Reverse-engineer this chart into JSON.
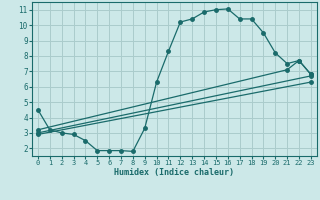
{
  "xlabel": "Humidex (Indice chaleur)",
  "bg_color": "#cce8e8",
  "grid_color": "#aacccc",
  "line_color": "#1a6b6b",
  "xlim": [
    -0.5,
    23.5
  ],
  "ylim": [
    1.5,
    11.5
  ],
  "xticks": [
    0,
    1,
    2,
    3,
    4,
    5,
    6,
    7,
    8,
    9,
    10,
    11,
    12,
    13,
    14,
    15,
    16,
    17,
    18,
    19,
    20,
    21,
    22,
    23
  ],
  "yticks": [
    2,
    3,
    4,
    5,
    6,
    7,
    8,
    9,
    10,
    11
  ],
  "line1_x": [
    0,
    1,
    2,
    3,
    4,
    5,
    6,
    7,
    8,
    9,
    10,
    11,
    12,
    13,
    14,
    15,
    16,
    17,
    18,
    19,
    20,
    21,
    22,
    23
  ],
  "line1_y": [
    4.5,
    3.2,
    3.0,
    2.9,
    2.5,
    1.85,
    1.85,
    1.85,
    1.8,
    3.3,
    6.3,
    8.3,
    10.2,
    10.4,
    10.85,
    11.0,
    11.05,
    10.4,
    10.4,
    9.5,
    8.2,
    7.5,
    7.7,
    6.8
  ],
  "line2_x": [
    0,
    21,
    22,
    23
  ],
  "line2_y": [
    3.2,
    7.1,
    7.7,
    6.8
  ],
  "line3_x": [
    0,
    23
  ],
  "line3_y": [
    3.0,
    6.7
  ],
  "line4_x": [
    0,
    23
  ],
  "line4_y": [
    2.9,
    6.3
  ]
}
